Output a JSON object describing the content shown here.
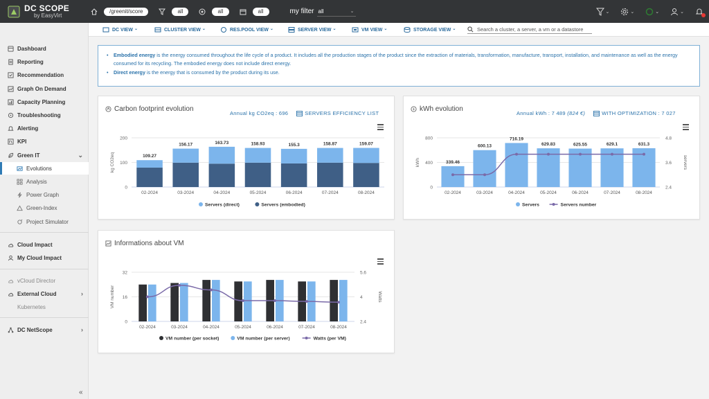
{
  "app": {
    "title": "DC SCOPE",
    "subtitle": "by EasyVirt"
  },
  "topbar": {
    "path_value": "/greenit/score",
    "filter_all_1": "all",
    "filter_all_2": "all",
    "filter_all_3": "all",
    "my_filter_label": "my filter",
    "my_filter_value": "all"
  },
  "subnav": {
    "items": [
      "DC VIEW",
      "CLUSTER VIEW",
      "RES.POOL VIEW",
      "SERVER VIEW",
      "VM VIEW",
      "STORAGE VIEW"
    ],
    "search_placeholder": "Search a cluster, a server, a vm or a datastore"
  },
  "sidebar": {
    "items": [
      "Dashboard",
      "Reporting",
      "Recommendation",
      "Graph On Demand",
      "Capacity Planning",
      "Troubleshooting",
      "Alerting",
      "KPI",
      "Green IT"
    ],
    "green_sub": [
      "Evolutions",
      "Analysis",
      "Power Graph",
      "Green-Index",
      "Project Simulator"
    ],
    "cloud": [
      "Cloud Impact",
      "My Cloud Impact"
    ],
    "external": [
      "vCloud Director",
      "External Cloud",
      "Kubernetes"
    ],
    "netscope": "DC NetScope",
    "collapse": "«"
  },
  "info": {
    "embodied_term": "Embodied energy",
    "embodied_text": " is the energy consumed throughout the life cycle of a product. It includes all the production stages of the product since the extraction of materials, transformation, manufacture, transport, installation, and maintenance as well as the energy consumed for its recycling. The embodied energy does not include direct energy.",
    "direct_term": "Direct energy",
    "direct_text": " is the energy that is consumed by the product during its use."
  },
  "cards": {
    "carbon": {
      "title": "Carbon footprint evolution",
      "annual": "Annual kg CO2eq : 696",
      "link": "SERVERS EFFICIENCY LIST"
    },
    "kwh": {
      "title": "kWh evolution",
      "annual_label": "Annual kWh : 7 489",
      "annual_cost": "(824 €)",
      "link": "WITH OPTIMIZATION : 7 027"
    },
    "vm": {
      "title": "Informations about VM"
    }
  },
  "colors": {
    "light_blue": "#7cb5ec",
    "dark_blue": "#3f5f86",
    "black_bar": "#2f3033",
    "purple": "#7a6aa8",
    "accent": "#2a72aa"
  },
  "chart_data": [
    {
      "type": "bar",
      "title": "Carbon footprint evolution",
      "categories": [
        "02-2024",
        "03-2024",
        "04-2024",
        "05-2024",
        "06-2024",
        "07-2024",
        "08-2024"
      ],
      "stacked": true,
      "series": [
        {
          "name": "Servers (direct)",
          "color": "#7cb5ec",
          "values": [
            30.27,
            57.17,
            68.73,
            59.93,
            59.3,
            59.87,
            61.07
          ]
        },
        {
          "name": "Servers (embodied)",
          "color": "#3f5f86",
          "values": [
            79,
            99,
            95,
            99,
            96,
            99,
            98
          ]
        }
      ],
      "totals": [
        "109.27",
        "156.17",
        "163.73",
        "158.93",
        "155.3",
        "158.87",
        "159.07"
      ],
      "ylabel": "kg CO2eq",
      "ylim": [
        0,
        200
      ],
      "yticks": [
        "0",
        "100",
        "200"
      ],
      "legend": "bottom"
    },
    {
      "type": "bar",
      "title": "kWh evolution",
      "categories": [
        "02-2024",
        "03-2024",
        "04-2024",
        "05-2024",
        "06-2024",
        "07-2024",
        "08-2024"
      ],
      "series": [
        {
          "name": "Servers",
          "color": "#7cb5ec",
          "axis": "left",
          "values": [
            339.46,
            600.13,
            716.19,
            629.83,
            625.55,
            629.1,
            631.3
          ]
        },
        {
          "name": "Servers number",
          "color": "#7a6aa8",
          "axis": "right",
          "type": "line",
          "values": [
            3,
            3,
            4,
            4,
            4,
            4,
            4
          ]
        }
      ],
      "labels": [
        "339.46",
        "600.13",
        "716.19",
        "629.83",
        "625.55",
        "629.1",
        "631.3"
      ],
      "ylabel": "kWh",
      "y2label": "servers",
      "ylim": [
        0,
        800
      ],
      "yticks": [
        "0",
        "400",
        "800"
      ],
      "y2lim": [
        2.4,
        4.8
      ],
      "y2ticks": [
        "2.4",
        "3.6",
        "4.8"
      ],
      "legend": "bottom"
    },
    {
      "type": "bar",
      "title": "Informations about VM",
      "categories": [
        "02-2024",
        "03-2024",
        "04-2024",
        "05-2024",
        "06-2024",
        "07-2024",
        "08-2024"
      ],
      "series": [
        {
          "name": "VM number (per socket)",
          "color": "#2f3033",
          "axis": "left",
          "values": [
            24,
            25,
            27,
            26,
            27,
            26,
            27
          ]
        },
        {
          "name": "VM number (per server)",
          "color": "#7cb5ec",
          "axis": "left",
          "values": [
            24,
            25,
            27,
            26,
            27,
            26,
            27
          ]
        },
        {
          "name": "Watts (per VM)",
          "color": "#7a6aa8",
          "axis": "right",
          "type": "line",
          "values": [
            4.0,
            4.75,
            4.45,
            3.75,
            3.75,
            3.7,
            3.65
          ]
        }
      ],
      "ylabel": "VM number",
      "y2label": "Watts",
      "ylim": [
        0,
        32
      ],
      "yticks": [
        "0",
        "16",
        "32"
      ],
      "y2lim": [
        2.4,
        5.6
      ],
      "y2ticks": [
        "2.4",
        "4",
        "5.6"
      ],
      "legend": "bottom"
    }
  ]
}
